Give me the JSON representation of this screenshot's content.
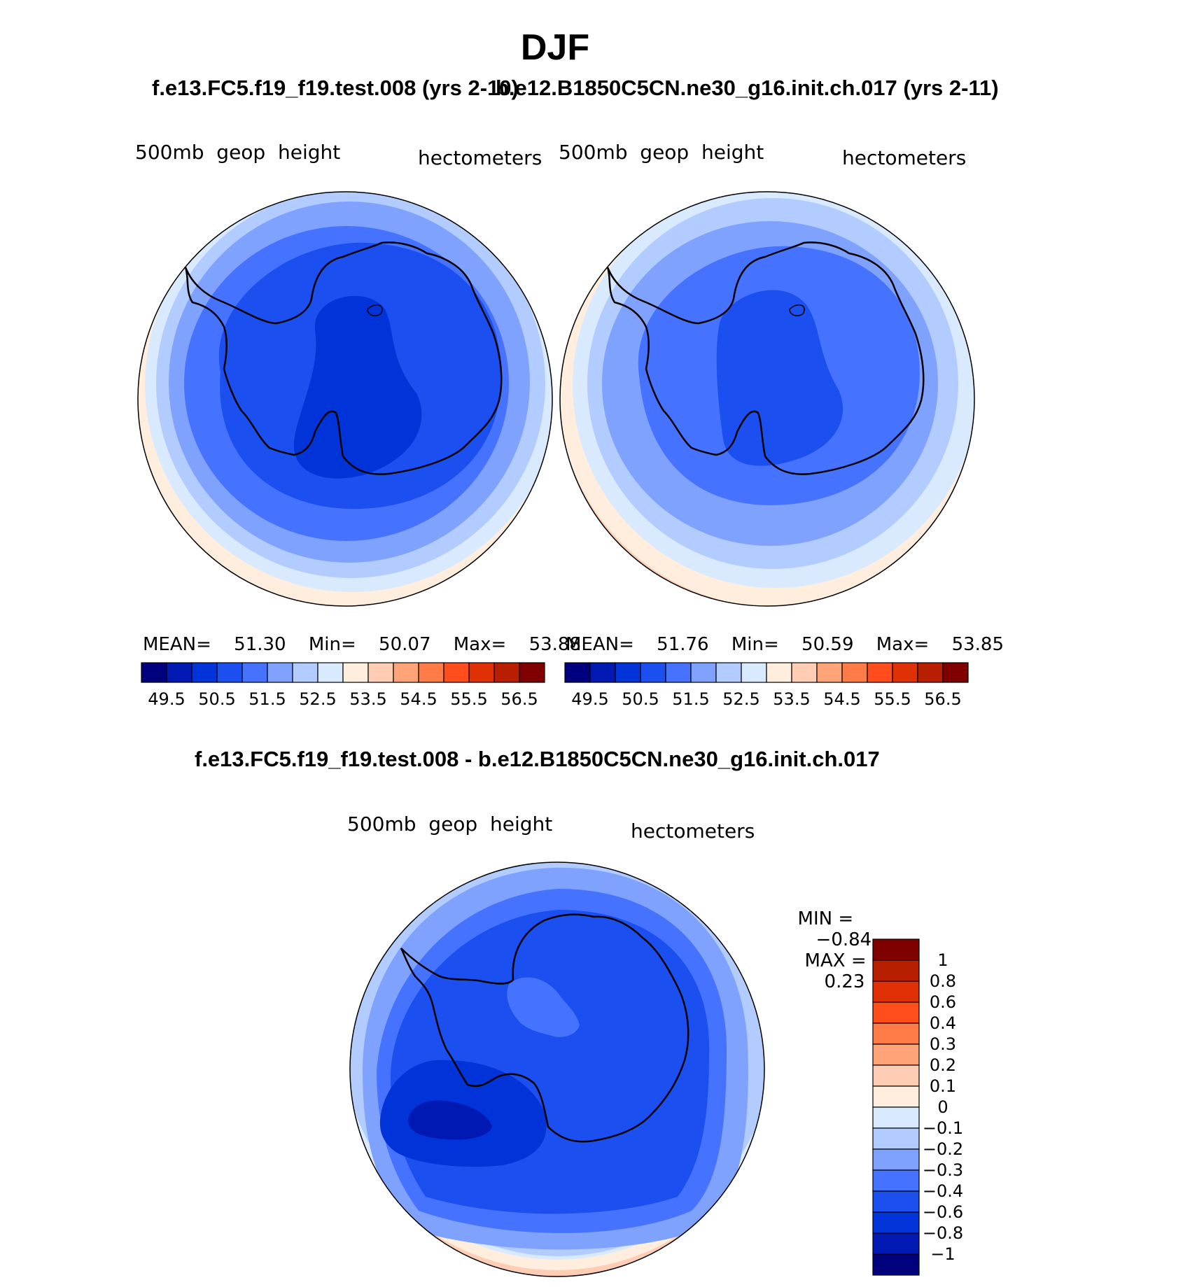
{
  "figure": {
    "season": "DJF",
    "left_title": "f.e13.FC5.f19_f19.test.008 (yrs 2-10)",
    "right_title": "b.e12.B1850C5CN.ne30_g16.init.ch.017 (yrs 2-11)",
    "diff_title": "f.e13.FC5.f19_f19.test.008 - b.e12.B1850C5CN.ne30_g16.init.ch.017"
  },
  "panels": {
    "left": {
      "variable": "500mb  geop  height",
      "units": "hectometers",
      "stats": {
        "mean_label": "MEAN=",
        "mean": "51.30",
        "min_label": "Min=",
        "min": "50.07",
        "max_label": "Max=",
        "max": "53.88"
      }
    },
    "right": {
      "variable": "500mb  geop  height",
      "units": "hectometers",
      "stats": {
        "mean_label": "MEAN=",
        "mean": "51.76",
        "min_label": "Min=",
        "min": "50.59",
        "max_label": "Max=",
        "max": "53.85"
      }
    },
    "diff": {
      "variable": "500mb  geop  height",
      "units": "hectometers",
      "stats": {
        "min_label": "MIN =",
        "min": "−0.84",
        "max_label": "MAX =",
        "max": "0.23"
      }
    }
  },
  "colorbars": {
    "absolute": {
      "colors": [
        "#00007f",
        "#0019b2",
        "#0033d8",
        "#1c4fef",
        "#4573ff",
        "#7fa2ff",
        "#b3ccff",
        "#d9eaff",
        "#ffeedd",
        "#ffcdb3",
        "#ffa479",
        "#ff7b48",
        "#ff4d1c",
        "#e03005",
        "#b81e00",
        "#800000"
      ],
      "labels": [
        "49.5",
        "50.5",
        "51.5",
        "52.5",
        "53.5",
        "54.5",
        "55.5",
        "56.5"
      ]
    },
    "difference": {
      "colors_top_to_bottom": [
        "#800000",
        "#b81e00",
        "#e03005",
        "#ff4d1c",
        "#ff7b48",
        "#ffa479",
        "#ffcdb3",
        "#ffeedd",
        "#d9eaff",
        "#b3ccff",
        "#7fa2ff",
        "#4573ff",
        "#1c4fef",
        "#0033d8",
        "#0019b2",
        "#00007f"
      ],
      "labels_top_to_bottom": [
        "1",
        "0.8",
        "0.6",
        "0.4",
        "0.3",
        "0.2",
        "0.1",
        "0",
        "−0.1",
        "−0.2",
        "−0.3",
        "−0.4",
        "−0.6",
        "−0.8",
        "−1"
      ]
    }
  }
}
